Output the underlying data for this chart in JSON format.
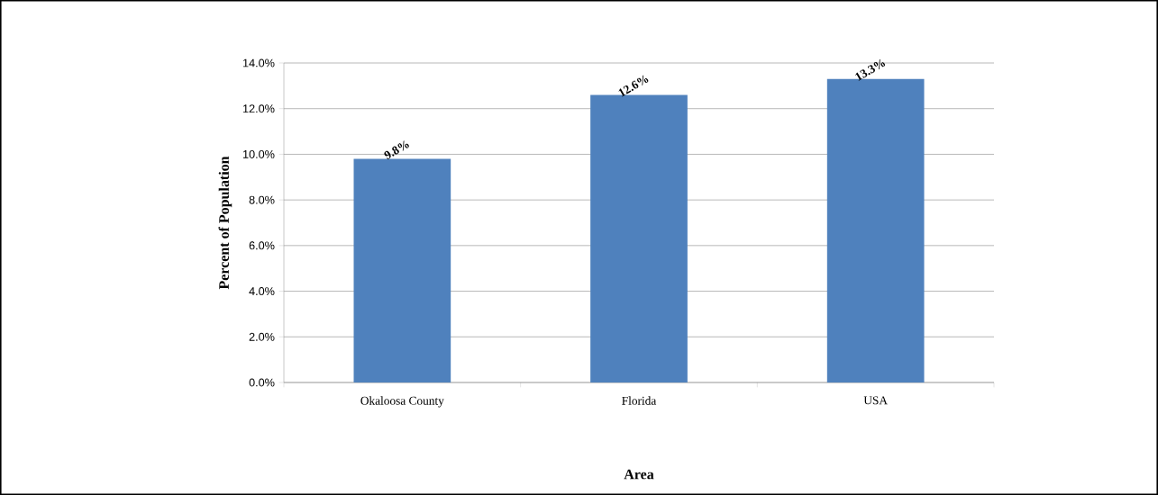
{
  "chart_data": {
    "type": "bar",
    "xlabel": "Area",
    "ylabel": "Percent of Population",
    "categories": [
      "Okaloosa County",
      "Florida",
      "USA"
    ],
    "values": [
      9.8,
      12.6,
      13.3
    ],
    "value_labels": [
      "9.8%",
      "12.6%",
      "13.3%"
    ],
    "color": "#4f81bd",
    "ylim": [
      0,
      14
    ],
    "yticks": [
      {
        "value": 0,
        "label": "0.0%"
      },
      {
        "value": 2,
        "label": "2.0%"
      },
      {
        "value": 4,
        "label": "4.0%"
      },
      {
        "value": 6,
        "label": "6.0%"
      },
      {
        "value": 8,
        "label": "8.0%"
      },
      {
        "value": 10,
        "label": "10.0%"
      },
      {
        "value": 12,
        "label": "12.0%"
      },
      {
        "value": 14,
        "label": "14.0%"
      }
    ],
    "grid": "y"
  }
}
